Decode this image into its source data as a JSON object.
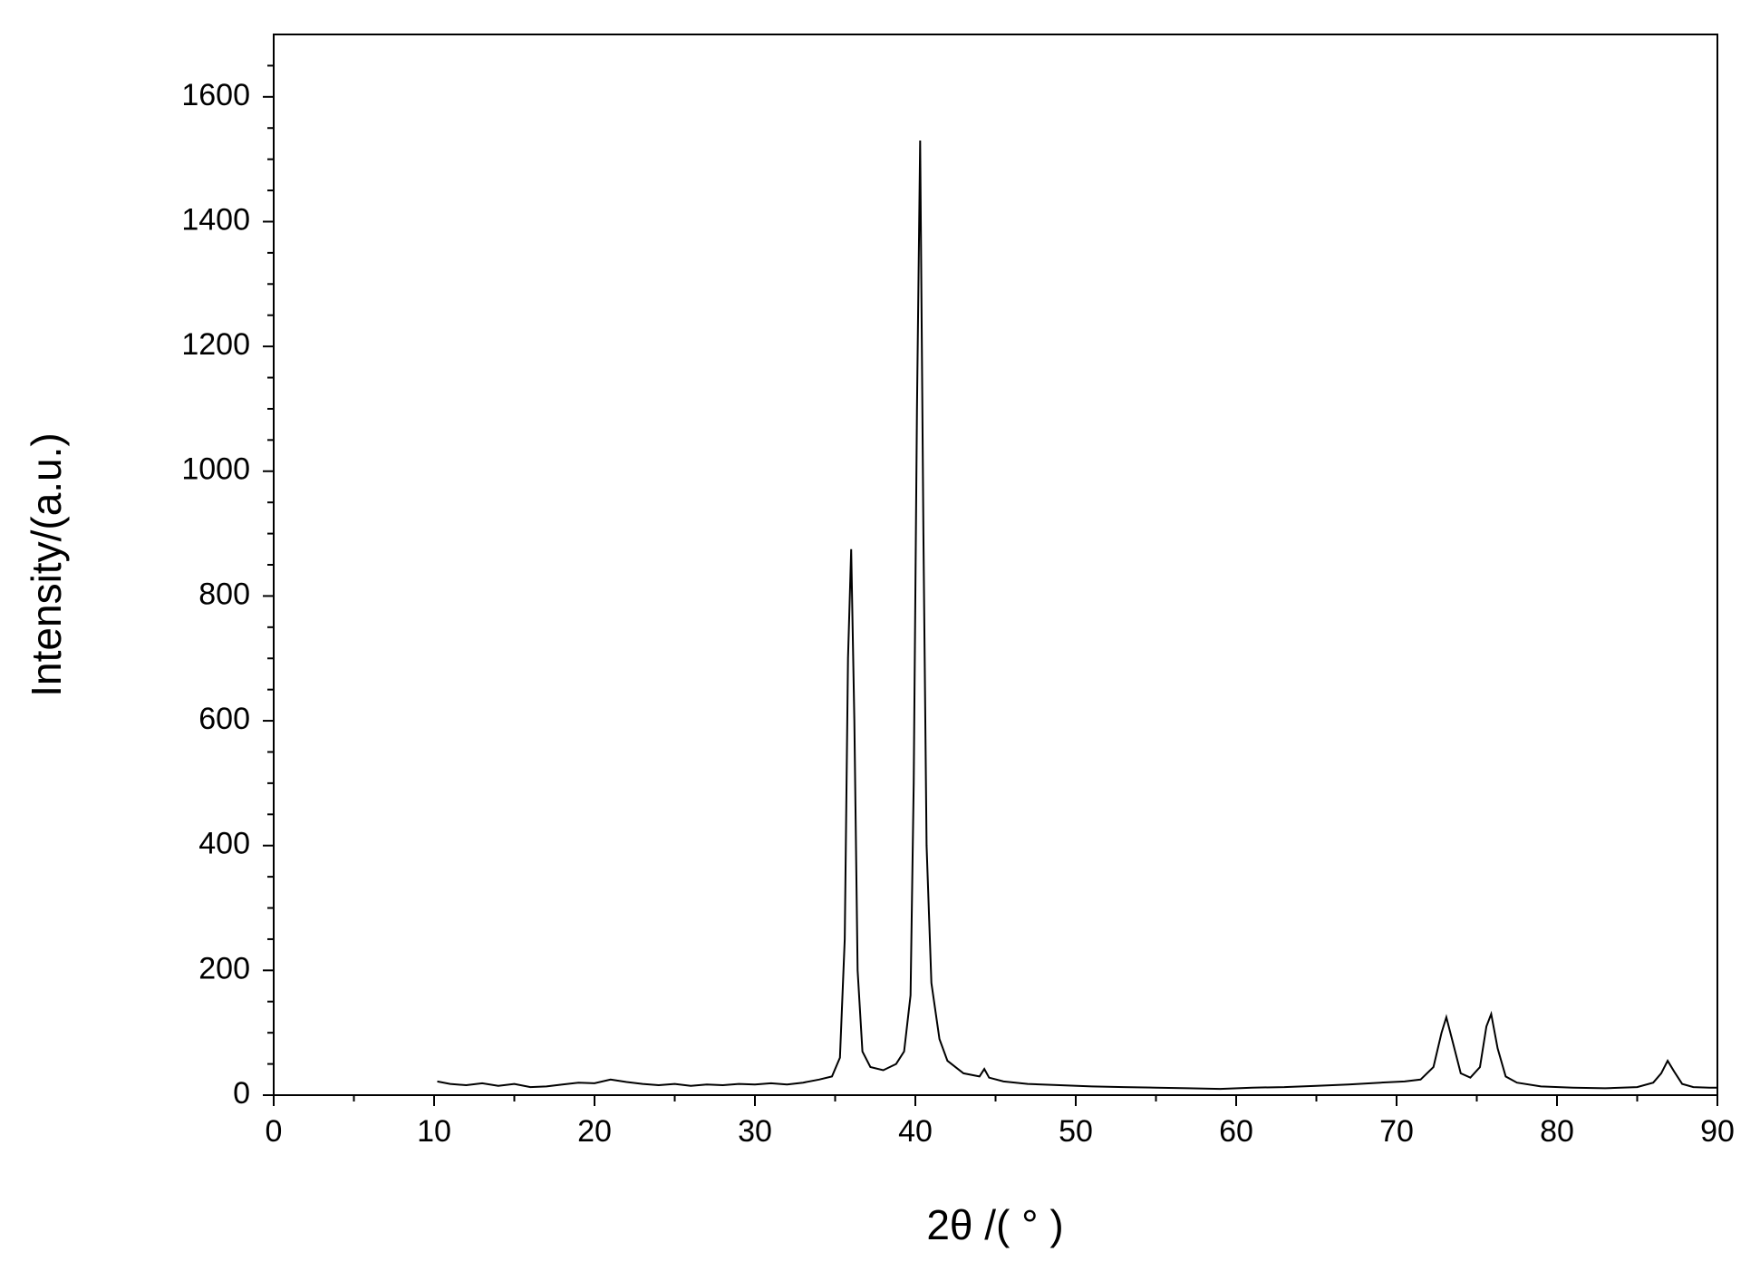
{
  "chart_data": {
    "type": "line",
    "xlabel": "2θ /( °  )",
    "ylabel": "Intensity/(a.u.)",
    "color": "#000000",
    "x": [
      10.2,
      11,
      12,
      13,
      14,
      15,
      16,
      17,
      18,
      19,
      20,
      21,
      22,
      23,
      24,
      25,
      26,
      27,
      28,
      29,
      30,
      31,
      32,
      33,
      34,
      34.8,
      35.3,
      35.6,
      35.8,
      36.0,
      36.2,
      36.4,
      36.7,
      37.2,
      38,
      38.8,
      39.3,
      39.7,
      39.9,
      40.1,
      40.3,
      40.5,
      40.7,
      41.0,
      41.5,
      42,
      43,
      44,
      44.3,
      44.6,
      45.5,
      47,
      49,
      51,
      53,
      55,
      57,
      59,
      61,
      63,
      65,
      67,
      69,
      70.5,
      71.5,
      72.3,
      72.8,
      73.1,
      73.5,
      74,
      74.6,
      75.2,
      75.6,
      75.9,
      76.3,
      76.8,
      77.5,
      79,
      81,
      83,
      85,
      86,
      86.5,
      86.9,
      87.3,
      87.8,
      88.5,
      89.5,
      90
    ],
    "values": [
      22,
      18,
      16,
      19,
      15,
      18,
      13,
      14,
      17,
      20,
      19,
      25,
      21,
      18,
      16,
      18,
      15,
      17,
      16,
      18,
      17,
      19,
      17,
      20,
      25,
      30,
      60,
      250,
      700,
      875,
      600,
      200,
      70,
      45,
      40,
      50,
      70,
      160,
      500,
      1100,
      1530,
      900,
      400,
      180,
      90,
      55,
      35,
      30,
      42,
      28,
      22,
      18,
      16,
      14,
      13,
      12,
      11,
      10,
      12,
      13,
      15,
      17,
      20,
      22,
      25,
      45,
      100,
      125,
      85,
      35,
      28,
      45,
      110,
      130,
      75,
      30,
      20,
      14,
      12,
      11,
      13,
      20,
      35,
      55,
      38,
      18,
      13,
      12,
      12
    ],
    "xlim": [
      0,
      90
    ],
    "ylim": [
      0,
      1700
    ],
    "xticks": [
      0,
      10,
      20,
      30,
      40,
      50,
      60,
      70,
      80,
      90
    ],
    "yticks": [
      0,
      200,
      400,
      600,
      800,
      1000,
      1200,
      1400,
      1600
    ],
    "xminorticks": [
      5,
      15,
      25,
      35,
      45,
      55,
      65,
      75,
      85
    ],
    "yminorticks": [
      50,
      100,
      150,
      250,
      300,
      350,
      450,
      500,
      550,
      650,
      700,
      750,
      850,
      900,
      950,
      1050,
      1100,
      1150,
      1250,
      1300,
      1350,
      1450,
      1500,
      1550,
      1650
    ]
  }
}
